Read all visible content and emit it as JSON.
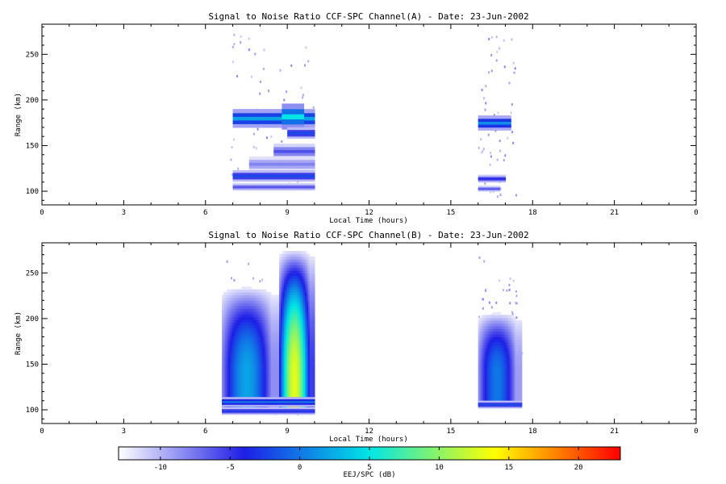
{
  "chart_data": [
    {
      "type": "heatmap",
      "title": "Signal to Noise Ratio CCF-SPC Channel(A) - Date: 23-Jun-2002",
      "xlabel": "Local Time (hours)",
      "ylabel": "Range (km)",
      "xlim": [
        0,
        24
      ],
      "ylim": [
        85,
        283
      ],
      "xticks": [
        "0",
        "3",
        "6",
        "9",
        "12",
        "15",
        "18",
        "21",
        "0"
      ],
      "yticks": [
        100,
        150,
        200,
        250
      ],
      "intervals": [
        [
          6.9,
          10.0
        ],
        [
          16.0,
          17.4
        ]
      ],
      "layers": [
        {
          "t_start": 7.0,
          "t_end": 10.0,
          "range": 180,
          "thickness": 10,
          "snr": 2
        },
        {
          "t_start": 8.8,
          "t_end": 9.6,
          "range": 182,
          "thickness": 14,
          "snr": 5
        },
        {
          "t_start": 9.0,
          "t_end": 10.0,
          "range": 164,
          "thickness": 6,
          "snr": -2
        },
        {
          "t_start": 8.5,
          "t_end": 10.0,
          "range": 144,
          "thickness": 8,
          "snr": -6
        },
        {
          "t_start": 7.6,
          "t_end": 10.0,
          "range": 130,
          "thickness": 8,
          "snr": -8
        },
        {
          "t_start": 7.0,
          "t_end": 10.0,
          "range": 117,
          "thickness": 6,
          "snr": -2
        },
        {
          "t_start": 7.0,
          "t_end": 10.0,
          "range": 105,
          "thickness": 4,
          "snr": -6
        },
        {
          "t_start": 16.0,
          "t_end": 17.2,
          "range": 175,
          "thickness": 8,
          "snr": 1
        },
        {
          "t_start": 16.0,
          "t_end": 17.0,
          "range": 114,
          "thickness": 4,
          "snr": -4
        },
        {
          "t_start": 16.0,
          "t_end": 16.8,
          "range": 103,
          "thickness": 3,
          "snr": -6
        }
      ]
    },
    {
      "type": "heatmap",
      "title": "Signal to Noise Ratio CCF-SPC Channel(B) - Date: 23-Jun-2002",
      "xlabel": "Local Time (hours)",
      "ylabel": "Range (km)",
      "xlim": [
        0,
        24
      ],
      "ylim": [
        85,
        283
      ],
      "xticks": [
        "0",
        "3",
        "6",
        "9",
        "12",
        "15",
        "18",
        "21",
        "0"
      ],
      "yticks": [
        100,
        150,
        200,
        250
      ],
      "intervals": [
        [
          6.6,
          10.0
        ],
        [
          16.0,
          17.6
        ]
      ],
      "plumes": [
        {
          "t_start": 6.6,
          "t_end": 8.7,
          "range_bottom": 100,
          "range_top": 240,
          "peak_range": 140,
          "peak_snr": 2
        },
        {
          "t_start": 8.7,
          "t_end": 10.0,
          "range_bottom": 100,
          "range_top": 283,
          "peak_range": 135,
          "peak_snr": 13
        },
        {
          "t_start": 16.0,
          "t_end": 17.6,
          "range_bottom": 105,
          "range_top": 210,
          "peak_range": 140,
          "peak_snr": 0
        }
      ],
      "layers": [
        {
          "t_start": 6.6,
          "t_end": 10.0,
          "range": 109,
          "thickness": 5,
          "snr": 0
        },
        {
          "t_start": 6.6,
          "t_end": 10.0,
          "range": 99,
          "thickness": 4,
          "snr": -3
        },
        {
          "t_start": 16.0,
          "t_end": 17.6,
          "range": 106,
          "thickness": 4,
          "snr": -2
        }
      ]
    }
  ],
  "colorbar": {
    "label": "EEJ/SPC (dB)",
    "min": -13,
    "max": 23,
    "ticks": [
      -10,
      -5,
      0,
      5,
      10,
      15,
      20
    ],
    "stops": [
      "#ffffff",
      "#1e1ee6",
      "#00e6e6",
      "#ffff00",
      "#ff0000"
    ]
  }
}
